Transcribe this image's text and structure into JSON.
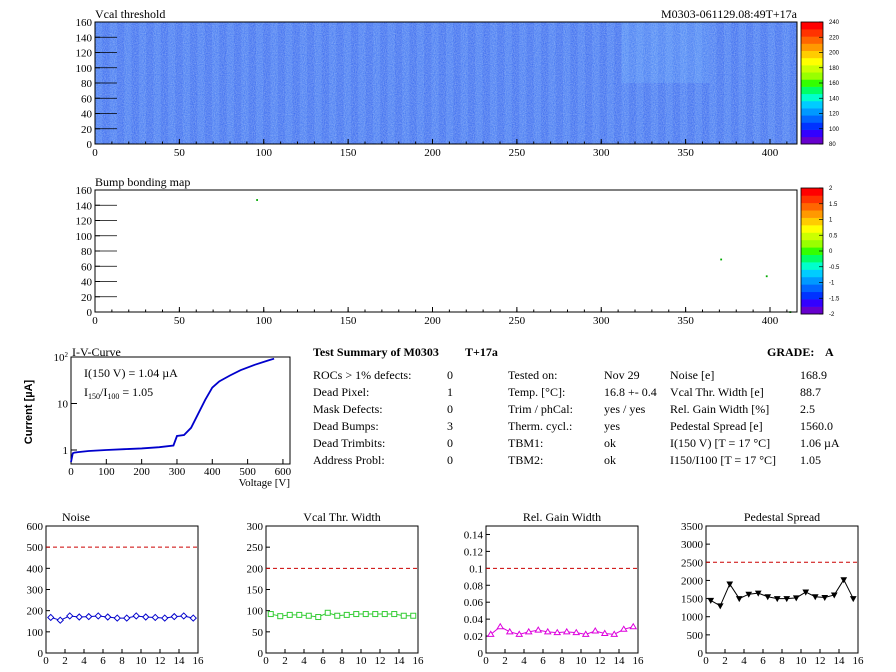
{
  "header": {
    "module_id": "M0303-061129.08:49T+17a"
  },
  "vcal_map": {
    "title": "Vcal threshold",
    "xticks": [
      "0",
      "50",
      "100",
      "150",
      "200",
      "250",
      "300",
      "350",
      "400"
    ],
    "yticks": [
      "0",
      "20",
      "40",
      "60",
      "80",
      "100",
      "120",
      "140",
      "160"
    ],
    "palette_labels": [
      "80",
      "100",
      "120",
      "140",
      "160",
      "180",
      "200",
      "220",
      "240"
    ]
  },
  "bump_map": {
    "title": "Bump bonding map",
    "xticks": [
      "0",
      "50",
      "100",
      "150",
      "200",
      "250",
      "300",
      "350",
      "400"
    ],
    "yticks": [
      "0",
      "20",
      "40",
      "60",
      "80",
      "100",
      "120",
      "140",
      "160"
    ],
    "palette_labels": [
      "-2",
      "-1.5",
      "-1",
      "-0.5",
      "0",
      "0.5",
      "1",
      "1.5",
      "2"
    ]
  },
  "iv_curve": {
    "title": "I-V-Curve",
    "ylabel": "Current [µA]",
    "xlabel": "Voltage [V]",
    "annotation1": "I(150 V) = 1.04 µA",
    "annotation2_prefix": "I",
    "annotation2_sub1": "150",
    "annotation2_mid": "/I",
    "annotation2_sub2": "100",
    "annotation2_value": "= 1.05",
    "xticks": [
      "0",
      "100",
      "200",
      "300",
      "400",
      "500",
      "600"
    ],
    "yticks": [
      "1",
      "10",
      "10"
    ],
    "ytick_sup": "2"
  },
  "summary": {
    "title": "Test Summary of M0303",
    "tag": "T+17a",
    "grade_label": "GRADE:",
    "grade_value": "A",
    "left": [
      {
        "label": "ROCs > 1% defects:",
        "value": "0"
      },
      {
        "label": "Dead Pixel:",
        "value": "1"
      },
      {
        "label": "Mask Defects:",
        "value": "0"
      },
      {
        "label": "Dead Bumps:",
        "value": "3"
      },
      {
        "label": "Dead Trimbits:",
        "value": "0"
      },
      {
        "label": "Address Probl:",
        "value": "0"
      }
    ],
    "mid": [
      {
        "label": "Tested on:",
        "value": "Nov 29"
      },
      {
        "label": "Temp. [°C]:",
        "value": "16.8 +- 0.4"
      },
      {
        "label": "Trim / phCal:",
        "value": "yes / yes"
      },
      {
        "label": "Therm. cycl.:",
        "value": "yes"
      },
      {
        "label": "TBM1:",
        "value": "ok"
      },
      {
        "label": "TBM2:",
        "value": "ok"
      }
    ],
    "right": [
      {
        "label": "Noise [e]",
        "value": "168.9"
      },
      {
        "label": "Vcal Thr. Width [e]",
        "value": "88.7"
      },
      {
        "label": "Rel. Gain Width [%]",
        "value": "2.5"
      },
      {
        "label": "Pedestal Spread [e]",
        "value": "1560.0"
      },
      {
        "label": "I(150 V) [T = 17 °C]",
        "value": "1.06 µA"
      },
      {
        "label": "I150/I100 [T = 17 °C]",
        "value": "1.05"
      }
    ]
  },
  "chart_data": [
    {
      "type": "heatmap",
      "title": "Vcal threshold",
      "xlim": [
        0,
        416
      ],
      "ylim": [
        0,
        160
      ],
      "zlim": [
        80,
        240
      ],
      "description_values": "per-ROC mean threshold colour (2 rows x 8 ROCs)",
      "roc_level": [
        [
          0.5,
          0.52,
          0.48,
          0.45,
          0.5,
          0.47,
          0.62,
          0.48
        ],
        [
          0.55,
          0.42,
          0.52,
          0.5,
          0.48,
          0.45,
          0.58,
          0.5
        ]
      ]
    },
    {
      "type": "scatter",
      "title": "Bump bonding map",
      "xlim": [
        0,
        416
      ],
      "ylim": [
        0,
        160
      ],
      "x": [
        96,
        371,
        398,
        412
      ],
      "y": [
        147,
        69,
        47,
        0
      ]
    },
    {
      "type": "line",
      "title": "I-V-Curve",
      "xlabel": "Voltage [V]",
      "ylabel": "Current [µA]",
      "xlim": [
        0,
        620
      ],
      "ylim": [
        0.5,
        100
      ],
      "log_y": true,
      "x": [
        0,
        5,
        10,
        20,
        50,
        100,
        150,
        200,
        250,
        290,
        300,
        320,
        340,
        360,
        380,
        400,
        420,
        450,
        480,
        520,
        560,
        575
      ],
      "y": [
        0.55,
        0.85,
        0.88,
        0.9,
        0.95,
        1.0,
        1.04,
        1.08,
        1.15,
        1.25,
        2.0,
        2.1,
        3.0,
        6.0,
        12.0,
        22.0,
        30.0,
        40.0,
        52.0,
        68.0,
        85.0,
        92.0
      ]
    },
    {
      "type": "line",
      "title": "Noise",
      "xlim": [
        0,
        16
      ],
      "ylim": [
        0,
        600
      ],
      "xticks": [
        "0",
        "2",
        "4",
        "6",
        "8",
        "10",
        "12",
        "14",
        "16"
      ],
      "yticks": [
        "0",
        "100",
        "200",
        "300",
        "400",
        "500",
        "600"
      ],
      "threshold": 500,
      "x": [
        0.5,
        1.5,
        2.5,
        3.5,
        4.5,
        5.5,
        6.5,
        7.5,
        8.5,
        9.5,
        10.5,
        11.5,
        12.5,
        13.5,
        14.5,
        15.5
      ],
      "y": [
        168,
        155,
        175,
        170,
        172,
        175,
        170,
        165,
        165,
        175,
        170,
        168,
        165,
        172,
        175,
        165
      ],
      "color": "#0000cc",
      "marker": "diamond"
    },
    {
      "type": "line",
      "title": "Vcal Thr. Width",
      "xlim": [
        0,
        16
      ],
      "ylim": [
        0,
        300
      ],
      "xticks": [
        "0",
        "2",
        "4",
        "6",
        "8",
        "10",
        "12",
        "14",
        "16"
      ],
      "yticks": [
        "0",
        "50",
        "100",
        "150",
        "200",
        "250",
        "300"
      ],
      "threshold": 200,
      "x": [
        0.5,
        1.5,
        2.5,
        3.5,
        4.5,
        5.5,
        6.5,
        7.5,
        8.5,
        9.5,
        10.5,
        11.5,
        12.5,
        13.5,
        14.5,
        15.5
      ],
      "y": [
        92,
        87,
        90,
        90,
        88,
        85,
        95,
        88,
        90,
        92,
        92,
        92,
        92,
        92,
        88,
        88
      ],
      "color": "#33cc33",
      "marker": "square"
    },
    {
      "type": "line",
      "title": "Rel. Gain Width",
      "xlim": [
        0,
        16
      ],
      "ylim": [
        0,
        0.15
      ],
      "xticks": [
        "0",
        "2",
        "4",
        "6",
        "8",
        "10",
        "12",
        "14",
        "16"
      ],
      "yticks": [
        "0",
        "0.02",
        "0.04",
        "0.06",
        "0.08",
        "0.1",
        "0.12",
        "0.14"
      ],
      "threshold": 0.1,
      "x": [
        0.5,
        1.5,
        2.5,
        3.5,
        4.5,
        5.5,
        6.5,
        7.5,
        8.5,
        9.5,
        10.5,
        11.5,
        12.5,
        13.5,
        14.5,
        15.5
      ],
      "y": [
        0.022,
        0.031,
        0.025,
        0.022,
        0.025,
        0.027,
        0.025,
        0.024,
        0.025,
        0.024,
        0.022,
        0.026,
        0.023,
        0.022,
        0.028,
        0.031
      ],
      "color": "#dd00dd",
      "marker": "triangle"
    },
    {
      "type": "line",
      "title": "Pedestal Spread",
      "xlim": [
        0,
        16
      ],
      "ylim": [
        0,
        3500
      ],
      "xticks": [
        "0",
        "2",
        "4",
        "6",
        "8",
        "10",
        "12",
        "14",
        "16"
      ],
      "yticks": [
        "0",
        "500",
        "1000",
        "1500",
        "2000",
        "2500",
        "3000",
        "3500"
      ],
      "threshold": 2500,
      "x": [
        0.5,
        1.5,
        2.5,
        3.5,
        4.5,
        5.5,
        6.5,
        7.5,
        8.5,
        9.5,
        10.5,
        11.5,
        12.5,
        13.5,
        14.5,
        15.5
      ],
      "y": [
        1450,
        1300,
        1900,
        1500,
        1620,
        1650,
        1550,
        1500,
        1500,
        1520,
        1680,
        1550,
        1530,
        1600,
        2020,
        1500
      ],
      "color": "#000000",
      "marker": "triangle-down"
    }
  ]
}
